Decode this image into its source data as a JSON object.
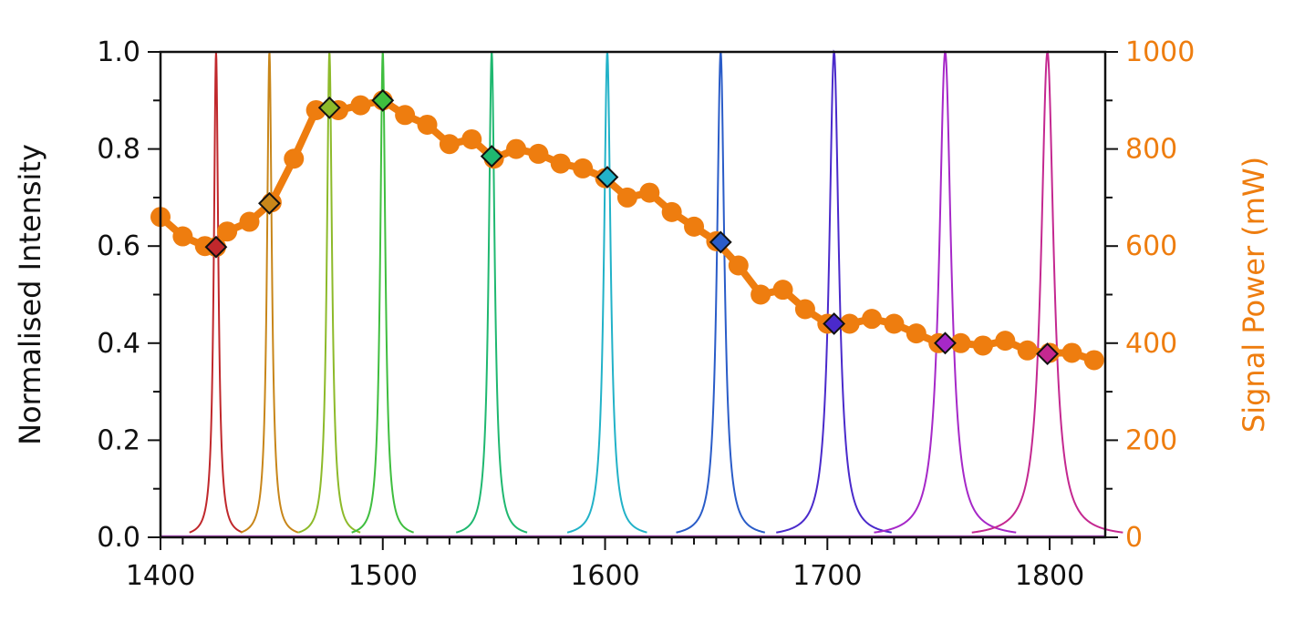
{
  "chart_data": {
    "type": "line",
    "xlabel": "",
    "ylabel": "Normalised Intensity",
    "y2label": "Signal Power (mW)",
    "xlim": [
      1400,
      1825
    ],
    "ylim": [
      0,
      1.0
    ],
    "y2lim": [
      0,
      1000
    ],
    "x_ticks": [
      1400,
      1500,
      1600,
      1700,
      1800
    ],
    "y_ticks": [
      0.0,
      0.2,
      0.4,
      0.6,
      0.8,
      1.0
    ],
    "y2_ticks": [
      0,
      200,
      400,
      600,
      800,
      1000
    ],
    "grid": false,
    "accent_color": "#EE7D0F",
    "spectral_peaks": [
      {
        "center": 1425,
        "peak": 1.0,
        "width": 1.2,
        "color": "#C0282C"
      },
      {
        "center": 1449,
        "peak": 1.0,
        "width": 1.3,
        "color": "#C8861A"
      },
      {
        "center": 1476,
        "peak": 1.0,
        "width": 1.4,
        "color": "#8DBA2A"
      },
      {
        "center": 1500,
        "peak": 1.0,
        "width": 1.4,
        "color": "#3FBE3F"
      },
      {
        "center": 1549,
        "peak": 1.0,
        "width": 1.6,
        "color": "#1FB870"
      },
      {
        "center": 1601,
        "peak": 1.0,
        "width": 1.8,
        "color": "#22B2C8"
      },
      {
        "center": 1652,
        "peak": 1.0,
        "width": 2.0,
        "color": "#2A5CC8"
      },
      {
        "center": 1703,
        "peak": 1.0,
        "width": 2.6,
        "color": "#4A2ACB"
      },
      {
        "center": 1753,
        "peak": 1.0,
        "width": 3.2,
        "color": "#A628C8"
      },
      {
        "center": 1799,
        "peak": 1.0,
        "width": 3.4,
        "color": "#C42890"
      }
    ],
    "series": [
      {
        "axis": "right",
        "color": "#EE7D0F",
        "x": [
          1400,
          1410,
          1420,
          1425,
          1430,
          1440,
          1450,
          1460,
          1470,
          1480,
          1490,
          1500,
          1510,
          1520,
          1530,
          1540,
          1550,
          1560,
          1570,
          1580,
          1590,
          1600,
          1610,
          1620,
          1630,
          1640,
          1650,
          1660,
          1670,
          1680,
          1690,
          1700,
          1710,
          1720,
          1730,
          1740,
          1750,
          1760,
          1770,
          1780,
          1790,
          1800,
          1810,
          1820
        ],
        "y": [
          660,
          620,
          600,
          598,
          630,
          650,
          690,
          780,
          880,
          880,
          890,
          900,
          870,
          850,
          810,
          820,
          780,
          800,
          790,
          770,
          760,
          740,
          700,
          710,
          670,
          640,
          610,
          560,
          500,
          510,
          470,
          440,
          440,
          450,
          440,
          420,
          400,
          400,
          395,
          405,
          385,
          380,
          380,
          365
        ]
      }
    ],
    "markers": [
      {
        "x": 1425,
        "y": 598,
        "color": "#C0282C"
      },
      {
        "x": 1449,
        "y": 688,
        "color": "#C8861A"
      },
      {
        "x": 1476,
        "y": 885,
        "color": "#8DBA2A"
      },
      {
        "x": 1500,
        "y": 900,
        "color": "#3FBE3F"
      },
      {
        "x": 1549,
        "y": 785,
        "color": "#1FB870"
      },
      {
        "x": 1601,
        "y": 742,
        "color": "#22B2C8"
      },
      {
        "x": 1652,
        "y": 608,
        "color": "#2A5CC8"
      },
      {
        "x": 1703,
        "y": 440,
        "color": "#4A2ACB"
      },
      {
        "x": 1753,
        "y": 400,
        "color": "#A628C8"
      },
      {
        "x": 1799,
        "y": 378,
        "color": "#C42890"
      }
    ]
  }
}
